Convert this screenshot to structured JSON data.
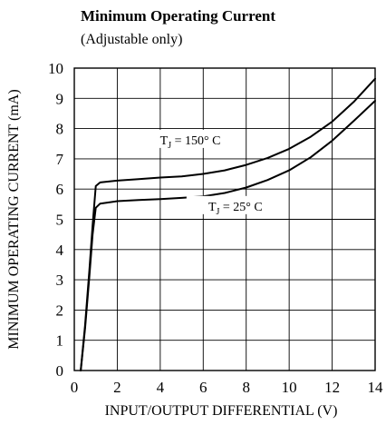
{
  "chart_data": {
    "type": "line",
    "title": "Minimum Operating Current",
    "subtitle": "(Adjustable only)",
    "xlabel": "INPUT/OUTPUT DIFFERENTIAL (V)",
    "ylabel": "MINIMUM OPERATING CURRENT (mA)",
    "xlim": [
      0,
      14
    ],
    "ylim": [
      0,
      10
    ],
    "x_ticks": [
      "0",
      "2",
      "4",
      "6",
      "8",
      "10",
      "12",
      "14"
    ],
    "y_ticks": [
      "0",
      "1",
      "2",
      "3",
      "4",
      "5",
      "6",
      "7",
      "8",
      "9",
      "10"
    ],
    "grid": true,
    "series": [
      {
        "name": "T_J = 150° C",
        "label_main": "T",
        "label_sub": "J",
        "label_rest": " = 150° C",
        "x": [
          0.3,
          0.5,
          0.7,
          0.85,
          1.0,
          1.2,
          2,
          3,
          4,
          5,
          6,
          7,
          8,
          9,
          10,
          11,
          12,
          13,
          14
        ],
        "y": [
          0.0,
          1.5,
          3.3,
          4.8,
          6.1,
          6.22,
          6.28,
          6.33,
          6.38,
          6.42,
          6.5,
          6.62,
          6.8,
          7.03,
          7.33,
          7.73,
          8.23,
          8.88,
          9.65
        ]
      },
      {
        "name": "T_J = 25° C",
        "label_main": "T",
        "label_sub": "J",
        "label_rest": " = 25° C",
        "x": [
          0.3,
          0.5,
          0.7,
          0.85,
          1.0,
          1.2,
          2,
          3,
          4,
          5,
          6,
          7,
          8,
          9,
          10,
          11,
          12,
          13,
          14
        ],
        "y": [
          0.0,
          1.4,
          3.1,
          4.5,
          5.38,
          5.52,
          5.6,
          5.64,
          5.67,
          5.71,
          5.76,
          5.87,
          6.05,
          6.3,
          6.62,
          7.05,
          7.6,
          8.25,
          8.92
        ]
      }
    ]
  }
}
